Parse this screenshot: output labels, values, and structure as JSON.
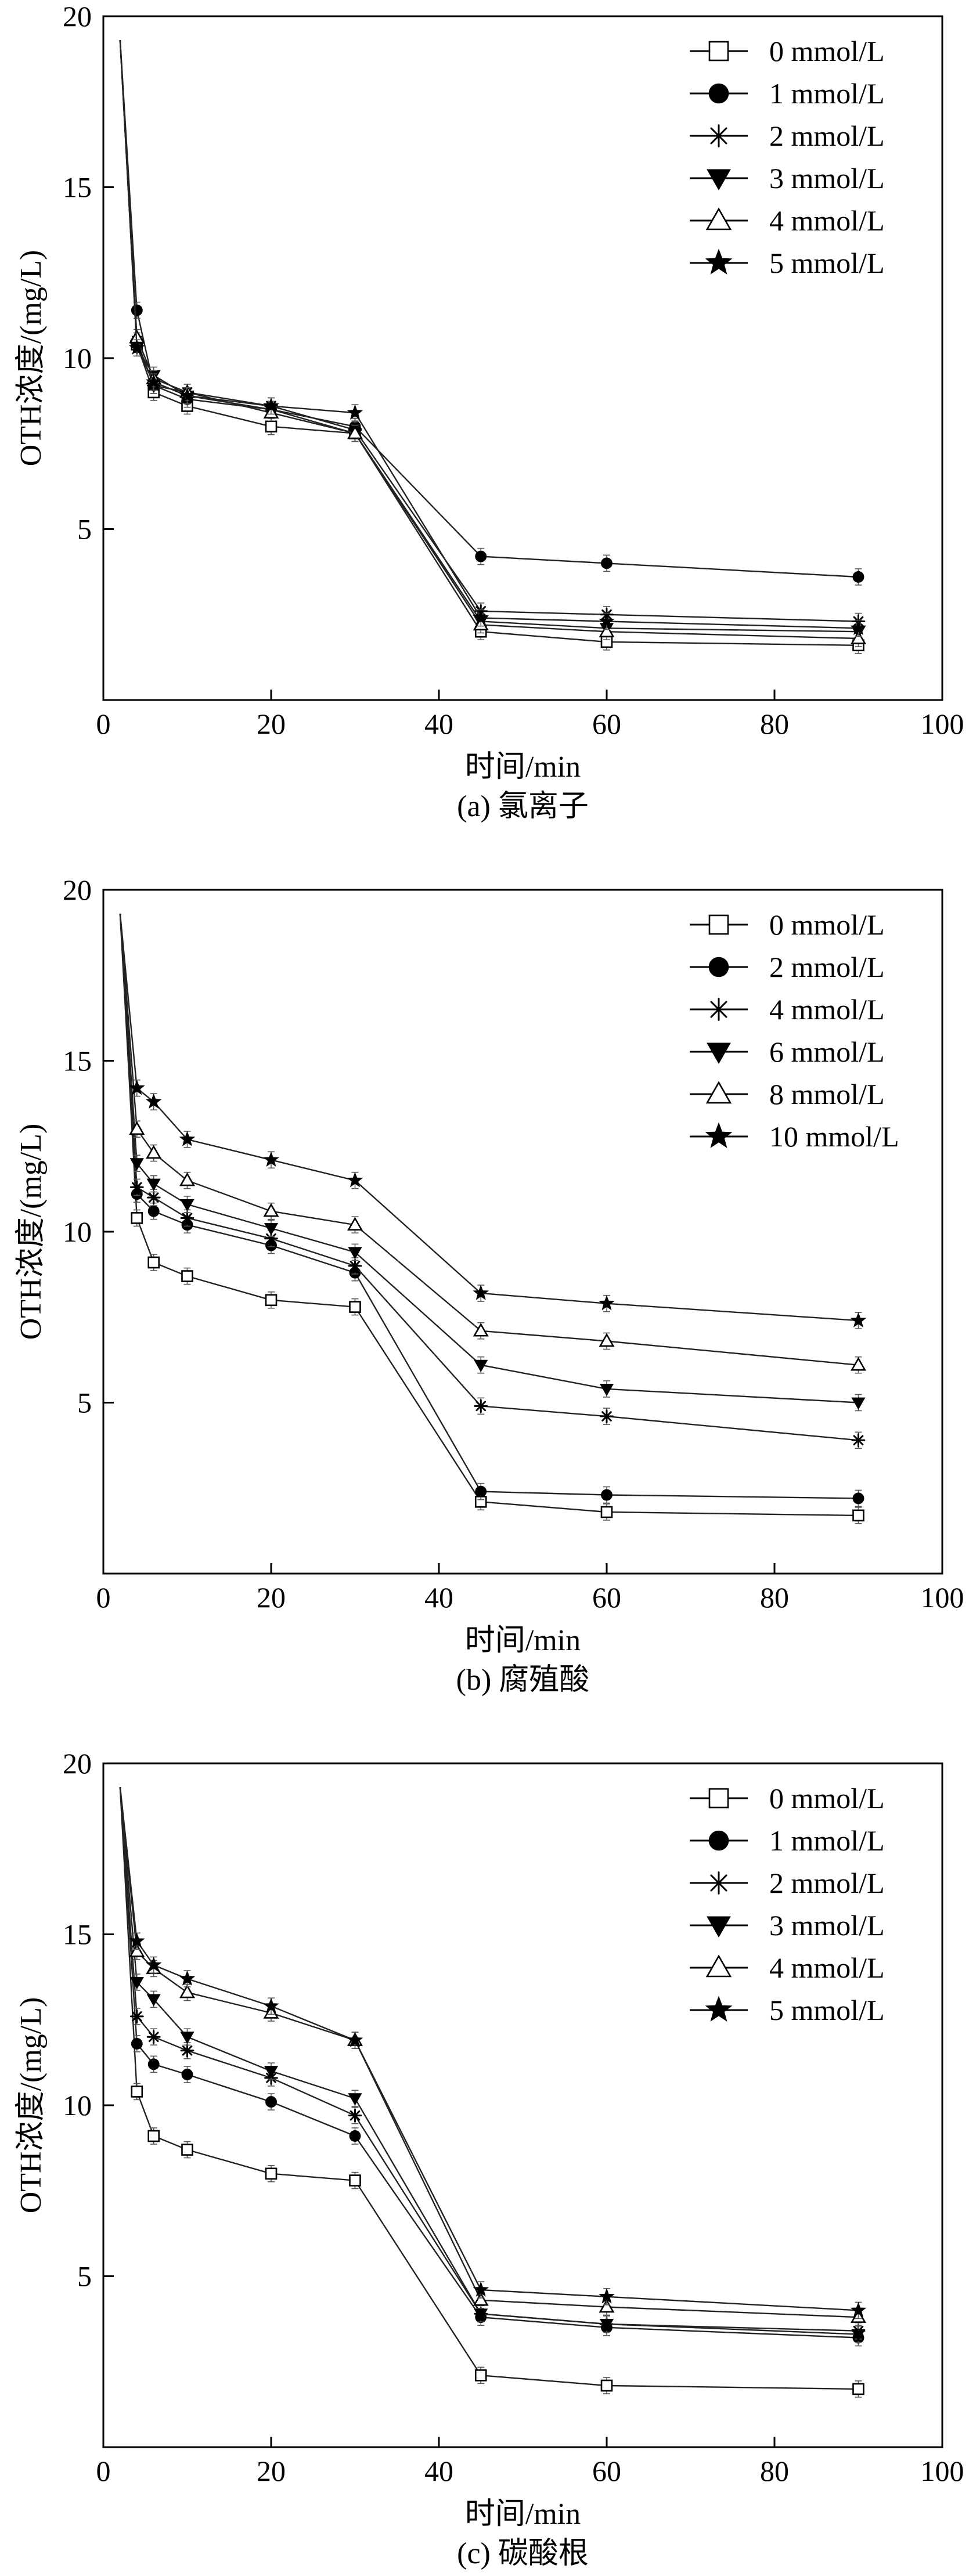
{
  "chart_data": [
    {
      "type": "line",
      "caption": "(a) 氯离子",
      "xlabel": "时间/min",
      "ylabel": "OTH浓度/(mg/L)",
      "xlim": [
        0,
        100
      ],
      "ylim": [
        0,
        20
      ],
      "xticks": [
        0,
        20,
        40,
        60,
        80,
        100
      ],
      "yticks": [
        5,
        10,
        15,
        20
      ],
      "x": [
        2,
        4,
        6,
        10,
        20,
        30,
        45,
        60,
        90
      ],
      "legend_position": "top-right",
      "series": [
        {
          "name": "0 mmol/L",
          "marker": "square-open",
          "values": [
            19.3,
            10.4,
            9.0,
            8.6,
            8.0,
            7.8,
            2.0,
            1.7,
            1.6
          ]
        },
        {
          "name": "1 mmol/L",
          "marker": "circle-filled",
          "values": [
            19.3,
            11.4,
            9.2,
            8.8,
            8.5,
            8.0,
            4.2,
            4.0,
            3.6
          ]
        },
        {
          "name": "2 mmol/L",
          "marker": "asterisk",
          "values": [
            19.3,
            10.5,
            9.2,
            9.0,
            8.6,
            7.9,
            2.6,
            2.5,
            2.3
          ]
        },
        {
          "name": "3 mmol/L",
          "marker": "triangle-down-filled",
          "values": [
            19.3,
            10.3,
            9.5,
            8.9,
            8.5,
            7.8,
            2.3,
            2.1,
            2.0
          ]
        },
        {
          "name": "4 mmol/L",
          "marker": "triangle-up-open",
          "values": [
            19.3,
            10.6,
            9.4,
            9.0,
            8.4,
            7.8,
            2.2,
            2.0,
            1.8
          ]
        },
        {
          "name": "5 mmol/L",
          "marker": "star-filled",
          "values": [
            19.3,
            10.3,
            9.3,
            8.9,
            8.6,
            8.4,
            2.4,
            2.3,
            2.1
          ]
        }
      ]
    },
    {
      "type": "line",
      "caption": "(b) 腐殖酸",
      "xlabel": "时间/min",
      "ylabel": "OTH浓度/(mg/L)",
      "xlim": [
        0,
        100
      ],
      "ylim": [
        0,
        20
      ],
      "xticks": [
        0,
        20,
        40,
        60,
        80,
        100
      ],
      "yticks": [
        5,
        10,
        15,
        20
      ],
      "x": [
        2,
        4,
        6,
        10,
        20,
        30,
        45,
        60,
        90
      ],
      "legend_position": "top-right",
      "series": [
        {
          "name": "0 mmol/L",
          "marker": "square-open",
          "values": [
            19.3,
            10.4,
            9.1,
            8.7,
            8.0,
            7.8,
            2.1,
            1.8,
            1.7
          ]
        },
        {
          "name": "2 mmol/L",
          "marker": "circle-filled",
          "values": [
            19.3,
            11.1,
            10.6,
            10.2,
            9.6,
            8.8,
            2.4,
            2.3,
            2.2
          ]
        },
        {
          "name": "4 mmol/L",
          "marker": "asterisk",
          "values": [
            19.3,
            11.3,
            11.0,
            10.4,
            9.8,
            9.0,
            4.9,
            4.6,
            3.9
          ]
        },
        {
          "name": "6 mmol/L",
          "marker": "triangle-down-filled",
          "values": [
            19.3,
            12.0,
            11.4,
            10.8,
            10.1,
            9.4,
            6.1,
            5.4,
            5.0
          ]
        },
        {
          "name": "8 mmol/L",
          "marker": "triangle-up-open",
          "values": [
            19.3,
            13.0,
            12.3,
            11.5,
            10.6,
            10.2,
            7.1,
            6.8,
            6.1
          ]
        },
        {
          "name": "10 mmol/L",
          "marker": "star-filled",
          "values": [
            19.3,
            14.2,
            13.8,
            12.7,
            12.1,
            11.5,
            8.2,
            7.9,
            7.4
          ]
        }
      ]
    },
    {
      "type": "line",
      "caption": "(c) 碳酸根",
      "xlabel": "时间/min",
      "ylabel": "OTH浓度/(mg/L)",
      "xlim": [
        0,
        100
      ],
      "ylim": [
        0,
        20
      ],
      "xticks": [
        0,
        20,
        40,
        60,
        80,
        100
      ],
      "yticks": [
        5,
        10,
        15,
        20
      ],
      "x": [
        2,
        4,
        6,
        10,
        20,
        30,
        45,
        60,
        90
      ],
      "legend_position": "top-right",
      "series": [
        {
          "name": "0 mmol/L",
          "marker": "square-open",
          "values": [
            19.3,
            10.4,
            9.1,
            8.7,
            8.0,
            7.8,
            2.1,
            1.8,
            1.7
          ]
        },
        {
          "name": "1 mmol/L",
          "marker": "circle-filled",
          "values": [
            19.3,
            11.8,
            11.2,
            10.9,
            10.1,
            9.1,
            3.8,
            3.5,
            3.2
          ]
        },
        {
          "name": "2 mmol/L",
          "marker": "asterisk",
          "values": [
            19.3,
            12.6,
            12.0,
            11.6,
            10.8,
            9.7,
            3.9,
            3.6,
            3.4
          ]
        },
        {
          "name": "3 mmol/L",
          "marker": "triangle-down-filled",
          "values": [
            19.3,
            13.6,
            13.1,
            12.0,
            11.0,
            10.2,
            3.9,
            3.6,
            3.3
          ]
        },
        {
          "name": "4 mmol/L",
          "marker": "triangle-up-open",
          "values": [
            19.3,
            14.5,
            14.0,
            13.3,
            12.7,
            11.9,
            4.3,
            4.1,
            3.8
          ]
        },
        {
          "name": "5 mmol/L",
          "marker": "star-filled",
          "values": [
            19.3,
            14.8,
            14.1,
            13.7,
            12.9,
            11.9,
            4.6,
            4.4,
            4.0
          ]
        }
      ]
    }
  ]
}
